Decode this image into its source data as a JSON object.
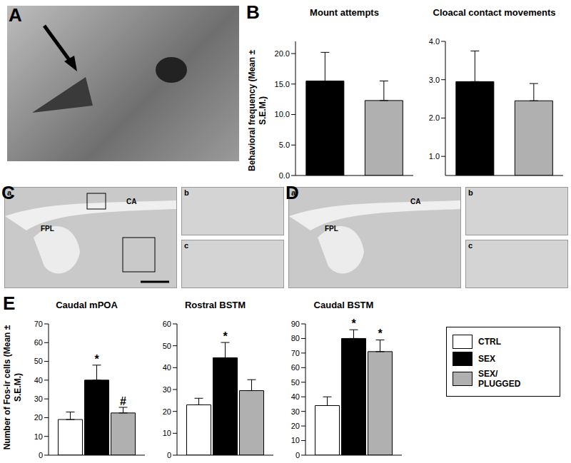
{
  "panel_labels": [
    "A",
    "B",
    "C",
    "D",
    "E"
  ],
  "images": [
    {
      "panel": "A"
    },
    {
      "panel": "C",
      "insets": [
        "a",
        "b",
        "c"
      ],
      "structures": [
        "CA",
        "FPL"
      ]
    },
    {
      "panel": "D",
      "insets": [
        "a",
        "b",
        "c"
      ],
      "structures": [
        "CA",
        "FPL"
      ]
    }
  ],
  "chart_data": [
    {
      "panel": "B",
      "type": "bar",
      "title": "Mount attempts",
      "y_label": "Behavioral frequency (Mean ± S.E.M.)",
      "categories": [
        null,
        null
      ],
      "values": [
        15.5,
        12.3
      ],
      "errors": [
        4.7,
        3.2
      ],
      "colors": [
        "#000000",
        "#b0b0b0"
      ],
      "ylim": [
        0,
        22
      ],
      "yticks": [
        {
          "value": 0,
          "label": "0.0"
        },
        {
          "value": 5,
          "label": "5.0"
        },
        {
          "value": 10,
          "label": "10.0"
        },
        {
          "value": 15,
          "label": "15.0"
        },
        {
          "value": 20,
          "label": "20.0"
        }
      ],
      "tick_labels": "y"
    },
    {
      "panel": "B",
      "type": "bar",
      "title": "Cloacal contact movements",
      "categories": [
        null,
        null
      ],
      "values": [
        2.95,
        2.45
      ],
      "errors": [
        0.8,
        0.45
      ],
      "colors": [
        "#000000",
        "#b0b0b0"
      ],
      "ylim": [
        0.5,
        4
      ],
      "yticks": [
        {
          "value": 1,
          "label": "1.0"
        },
        {
          "value": 2,
          "label": "2.0"
        },
        {
          "value": 3,
          "label": "3.0"
        },
        {
          "value": 4,
          "label": "4.0"
        }
      ],
      "tick_labels": "y"
    },
    {
      "panel": "E",
      "type": "bar",
      "title": "Caudal mPOA",
      "y_label": "Number of Fos-ir cells (Mean ± S.E.M.)",
      "categories": [
        null
      ],
      "series": [
        {
          "name": "CTRL",
          "color": "#ffffff",
          "values": [
            19
          ],
          "errors": [
            4
          ],
          "significance": [
            null
          ]
        },
        {
          "name": "SEX",
          "color": "#000000",
          "values": [
            40
          ],
          "errors": [
            8
          ],
          "significance": [
            "*"
          ]
        },
        {
          "name": "SEX/ PLUGGED",
          "color": "#b0b0b0",
          "values": [
            22.5
          ],
          "errors": [
            3
          ],
          "significance": [
            "#"
          ]
        }
      ],
      "ylim": [
        0,
        70
      ],
      "yticks": [
        0,
        10,
        20,
        30,
        40,
        50,
        60,
        70
      ],
      "tick_labels": "y"
    },
    {
      "panel": "E",
      "type": "bar",
      "title": "Rostral BSTM",
      "categories": [
        null
      ],
      "series": [
        {
          "name": "CTRL",
          "color": "#ffffff",
          "values": [
            23
          ],
          "errors": [
            3
          ],
          "significance": [
            null
          ]
        },
        {
          "name": "SEX",
          "color": "#000000",
          "values": [
            44.5
          ],
          "errors": [
            7
          ],
          "significance": [
            "*"
          ]
        },
        {
          "name": "SEX/ PLUGGED",
          "color": "#b0b0b0",
          "values": [
            29.5
          ],
          "errors": [
            5
          ],
          "significance": [
            null
          ]
        }
      ],
      "ylim": [
        0,
        60
      ],
      "yticks": [
        0,
        10,
        20,
        30,
        40,
        50,
        60
      ],
      "tick_labels": "y"
    },
    {
      "panel": "E",
      "type": "bar",
      "title": "Caudal BSTM",
      "categories": [
        null
      ],
      "series": [
        {
          "name": "CTRL",
          "color": "#ffffff",
          "values": [
            34
          ],
          "errors": [
            6
          ],
          "significance": [
            null
          ]
        },
        {
          "name": "SEX",
          "color": "#000000",
          "values": [
            80
          ],
          "errors": [
            6
          ],
          "significance": [
            "*"
          ]
        },
        {
          "name": "SEX/ PLUGGED",
          "color": "#b0b0b0",
          "values": [
            71
          ],
          "errors": [
            8
          ],
          "significance": [
            "*"
          ]
        }
      ],
      "ylim": [
        0,
        90
      ],
      "yticks": [
        0,
        10,
        20,
        30,
        40,
        50,
        60,
        70,
        80,
        90
      ],
      "tick_labels": "y",
      "legend": "right"
    }
  ]
}
